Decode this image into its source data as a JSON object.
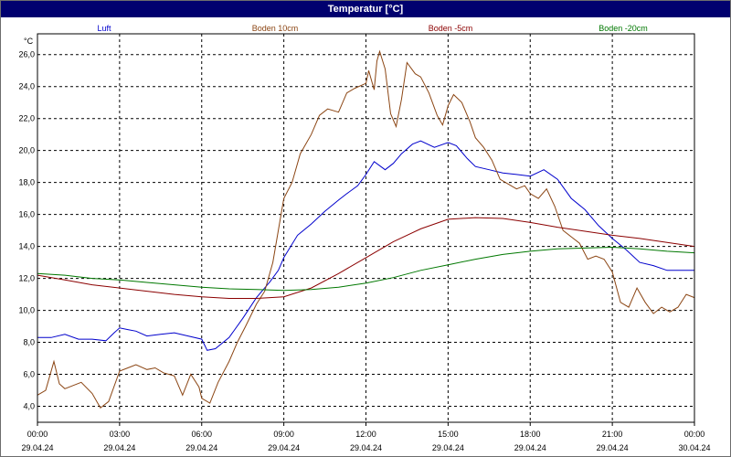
{
  "window": {
    "title": "Temperatur [°C]"
  },
  "chart_data": {
    "type": "line",
    "title": "Temperatur [°C]",
    "ylabel": "°C",
    "xlabel": "",
    "ylim": [
      3.0,
      27.3
    ],
    "xlim": [
      0,
      24
    ],
    "grid": true,
    "legend_position": "top",
    "y_ticks": [
      "4,0",
      "6,0",
      "8,0",
      "10,0",
      "12,0",
      "14,0",
      "16,0",
      "18,0",
      "20,0",
      "22,0",
      "24,0",
      "26,0"
    ],
    "x_ticks": [
      {
        "time": "00:00",
        "date": "29.04.24"
      },
      {
        "time": "03:00",
        "date": "29.04.24"
      },
      {
        "time": "06:00",
        "date": "29.04.24"
      },
      {
        "time": "09:00",
        "date": "29.04.24"
      },
      {
        "time": "12:00",
        "date": "29.04.24"
      },
      {
        "time": "15:00",
        "date": "29.04.24"
      },
      {
        "time": "18:00",
        "date": "29.04.24"
      },
      {
        "time": "21:00",
        "date": "29.04.24"
      },
      {
        "time": "00:00",
        "date": "30.04.24"
      }
    ],
    "series": [
      {
        "name": "Luft",
        "color": "#0000cc",
        "x": [
          0,
          0.5,
          1,
          1.5,
          2,
          2.5,
          2.8,
          3,
          3.3,
          3.6,
          4,
          4.5,
          5,
          5.5,
          6,
          6.2,
          6.5,
          7,
          7.5,
          8,
          8.5,
          8.8,
          9,
          9.5,
          10,
          10.5,
          11,
          11.3,
          11.7,
          12,
          12.3,
          12.7,
          13,
          13.3,
          13.7,
          14,
          14.5,
          15,
          15.3,
          15.7,
          16,
          16.5,
          17,
          17.5,
          18,
          18.5,
          19,
          19.5,
          20,
          20.5,
          21,
          21.5,
          22,
          22.5,
          23,
          23.5,
          24
        ],
        "values": [
          8.3,
          8.3,
          8.5,
          8.2,
          8.2,
          8.1,
          8.6,
          8.9,
          8.8,
          8.7,
          8.4,
          8.5,
          8.6,
          8.4,
          8.2,
          7.5,
          7.6,
          8.3,
          9.5,
          10.8,
          11.8,
          12.5,
          13.3,
          14.7,
          15.4,
          16.2,
          16.9,
          17.3,
          17.8,
          18.5,
          19.3,
          18.8,
          19.2,
          19.8,
          20.4,
          20.6,
          20.2,
          20.5,
          20.3,
          19.5,
          19.0,
          18.8,
          18.6,
          18.5,
          18.4,
          18.8,
          18.2,
          17.0,
          16.3,
          15.3,
          14.5,
          13.8,
          13.0,
          12.8,
          12.5,
          12.5,
          12.5
        ]
      },
      {
        "name": "Boden 10cm",
        "color": "#8b4513",
        "x": [
          0,
          0.3,
          0.6,
          0.8,
          1,
          1.3,
          1.6,
          2,
          2.3,
          2.6,
          3,
          3.3,
          3.6,
          4,
          4.3,
          4.6,
          5,
          5.3,
          5.6,
          5.9,
          6,
          6.3,
          6.6,
          7,
          7.3,
          7.6,
          8,
          8.3,
          8.6,
          9,
          9.3,
          9.6,
          10,
          10.3,
          10.6,
          11,
          11.3,
          11.6,
          12,
          12.1,
          12.3,
          12.4,
          12.5,
          12.7,
          12.9,
          13.1,
          13.3,
          13.5,
          13.8,
          14,
          14.3,
          14.6,
          14.8,
          15,
          15.2,
          15.5,
          15.8,
          16,
          16.3,
          16.6,
          16.9,
          17.2,
          17.5,
          17.8,
          18,
          18.3,
          18.6,
          18.9,
          19.2,
          19.5,
          19.8,
          20.1,
          20.4,
          20.7,
          21,
          21.3,
          21.6,
          21.9,
          22.2,
          22.5,
          22.8,
          23.1,
          23.4,
          23.7,
          24
        ],
        "values": [
          4.7,
          5.0,
          6.8,
          5.4,
          5.1,
          5.3,
          5.5,
          4.8,
          3.9,
          4.3,
          6.2,
          6.4,
          6.6,
          6.3,
          6.4,
          6.1,
          5.9,
          4.7,
          6.0,
          5.2,
          4.5,
          4.2,
          5.5,
          6.8,
          8.0,
          9.0,
          10.4,
          11.2,
          13.0,
          17.0,
          18.0,
          19.8,
          21.0,
          22.2,
          22.6,
          22.4,
          23.6,
          23.9,
          24.2,
          25.0,
          23.8,
          25.6,
          26.2,
          25.1,
          22.3,
          21.5,
          23.2,
          25.5,
          24.8,
          24.6,
          23.6,
          22.2,
          21.6,
          22.8,
          23.5,
          23.0,
          21.8,
          20.8,
          20.2,
          19.4,
          18.2,
          17.9,
          17.6,
          17.8,
          17.3,
          17.0,
          17.6,
          16.5,
          15.0,
          14.6,
          14.2,
          13.2,
          13.4,
          13.2,
          12.4,
          10.5,
          10.2,
          11.4,
          10.5,
          9.8,
          10.2,
          9.9,
          10.2,
          11.0,
          10.8
        ]
      },
      {
        "name": "Boden -5cm",
        "color": "#8b0000",
        "x": [
          0,
          1,
          2,
          3,
          4,
          5,
          6,
          7,
          8,
          9,
          10,
          11,
          12,
          13,
          14,
          15,
          16,
          17,
          18,
          19,
          20,
          21,
          22,
          23,
          24
        ],
        "values": [
          12.2,
          11.9,
          11.6,
          11.4,
          11.2,
          11.0,
          10.85,
          10.75,
          10.75,
          10.85,
          11.4,
          12.3,
          13.3,
          14.3,
          15.1,
          15.7,
          15.8,
          15.75,
          15.5,
          15.2,
          14.95,
          14.7,
          14.5,
          14.25,
          14.0
        ]
      },
      {
        "name": "Boden -20cm",
        "color": "#007800",
        "x": [
          0,
          1,
          2,
          3,
          4,
          5,
          6,
          7,
          8,
          9,
          10,
          11,
          12,
          13,
          14,
          15,
          16,
          17,
          18,
          19,
          20,
          21,
          22,
          23,
          24
        ],
        "values": [
          12.3,
          12.2,
          12.0,
          11.9,
          11.75,
          11.6,
          11.45,
          11.35,
          11.3,
          11.25,
          11.3,
          11.45,
          11.7,
          12.05,
          12.5,
          12.85,
          13.2,
          13.5,
          13.7,
          13.85,
          13.9,
          13.95,
          13.85,
          13.7,
          13.6
        ]
      }
    ]
  }
}
